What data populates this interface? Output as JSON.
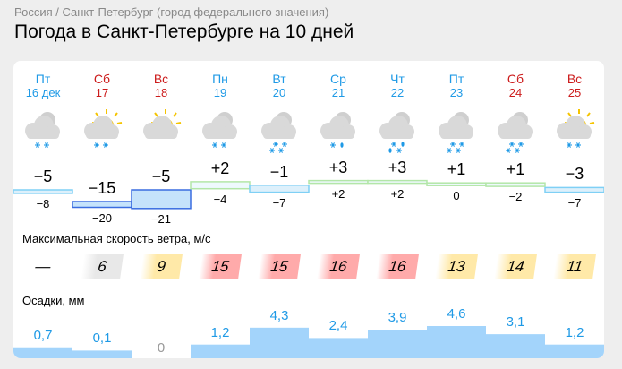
{
  "breadcrumb": "Россия / Санкт-Петербург (город федерального значения)",
  "title": "Погода в Санкт-Петербурге на 10 дней",
  "wind_label": "Максимальная скорость ветра, м/с",
  "precip_label": "Осадки, мм",
  "days": [
    {
      "name": "Пт",
      "date": "16 дек",
      "weekend": false,
      "icon": "cloudy-light-snow-icon",
      "day": "−5",
      "night": "−8",
      "t_day": -5,
      "t_night": -8,
      "wind": "—",
      "wind_level": "none",
      "precip": "0,7",
      "p": 0.7
    },
    {
      "name": "Сб",
      "date": "17",
      "weekend": true,
      "icon": "partly-sunny-light-snow-icon",
      "day": "−15",
      "night": "−20",
      "t_day": -15,
      "t_night": -20,
      "wind": "6",
      "wind_level": "low",
      "precip": "0,1",
      "p": 0.1
    },
    {
      "name": "Вс",
      "date": "18",
      "weekend": true,
      "icon": "partly-sunny-icon",
      "day": "−5",
      "night": "−21",
      "t_day": -5,
      "t_night": -21,
      "wind": "9",
      "wind_level": "mid",
      "precip": "0",
      "p": 0
    },
    {
      "name": "Пн",
      "date": "19",
      "weekend": false,
      "icon": "cloudy-light-snow-icon",
      "day": "+2",
      "night": "−4",
      "t_day": 2,
      "t_night": -4,
      "wind": "15",
      "wind_level": "high",
      "precip": "1,2",
      "p": 1.2
    },
    {
      "name": "Вт",
      "date": "20",
      "weekend": false,
      "icon": "cloudy-snow-icon",
      "day": "−1",
      "night": "−7",
      "t_day": -1,
      "t_night": -7,
      "wind": "15",
      "wind_level": "high",
      "precip": "4,3",
      "p": 4.3
    },
    {
      "name": "Ср",
      "date": "21",
      "weekend": false,
      "icon": "cloudy-sleet-icon",
      "day": "+3",
      "night": "+2",
      "t_day": 3,
      "t_night": 2,
      "wind": "16",
      "wind_level": "high",
      "precip": "2,4",
      "p": 2.4
    },
    {
      "name": "Чт",
      "date": "22",
      "weekend": false,
      "icon": "cloudy-rain-snow-icon",
      "day": "+3",
      "night": "+2",
      "t_day": 3,
      "t_night": 2,
      "wind": "16",
      "wind_level": "high",
      "precip": "3,9",
      "p": 3.9
    },
    {
      "name": "Пт",
      "date": "23",
      "weekend": false,
      "icon": "cloudy-snow-icon",
      "day": "+1",
      "night": "0",
      "t_day": 1,
      "t_night": 0,
      "wind": "13",
      "wind_level": "mid",
      "precip": "4,6",
      "p": 4.6
    },
    {
      "name": "Сб",
      "date": "24",
      "weekend": true,
      "icon": "cloudy-snow-icon",
      "day": "+1",
      "night": "−2",
      "t_day": 1,
      "t_night": -2,
      "wind": "14",
      "wind_level": "mid",
      "precip": "3,1",
      "p": 3.1
    },
    {
      "name": "Вс",
      "date": "25",
      "weekend": true,
      "icon": "partly-sunny-light-snow-icon",
      "day": "−3",
      "night": "−7",
      "t_day": -3,
      "t_night": -7,
      "wind": "11",
      "wind_level": "mid",
      "precip": "1,2",
      "p": 1.2
    }
  ],
  "colors": {
    "accent": "#1f9ae6",
    "weekend": "#cc1b1b",
    "precip_fill": "#a3d4fb",
    "wind_low": "#e8e8e8",
    "wind_mid": "#ffe9a8",
    "wind_high": "#ffaaaa"
  }
}
